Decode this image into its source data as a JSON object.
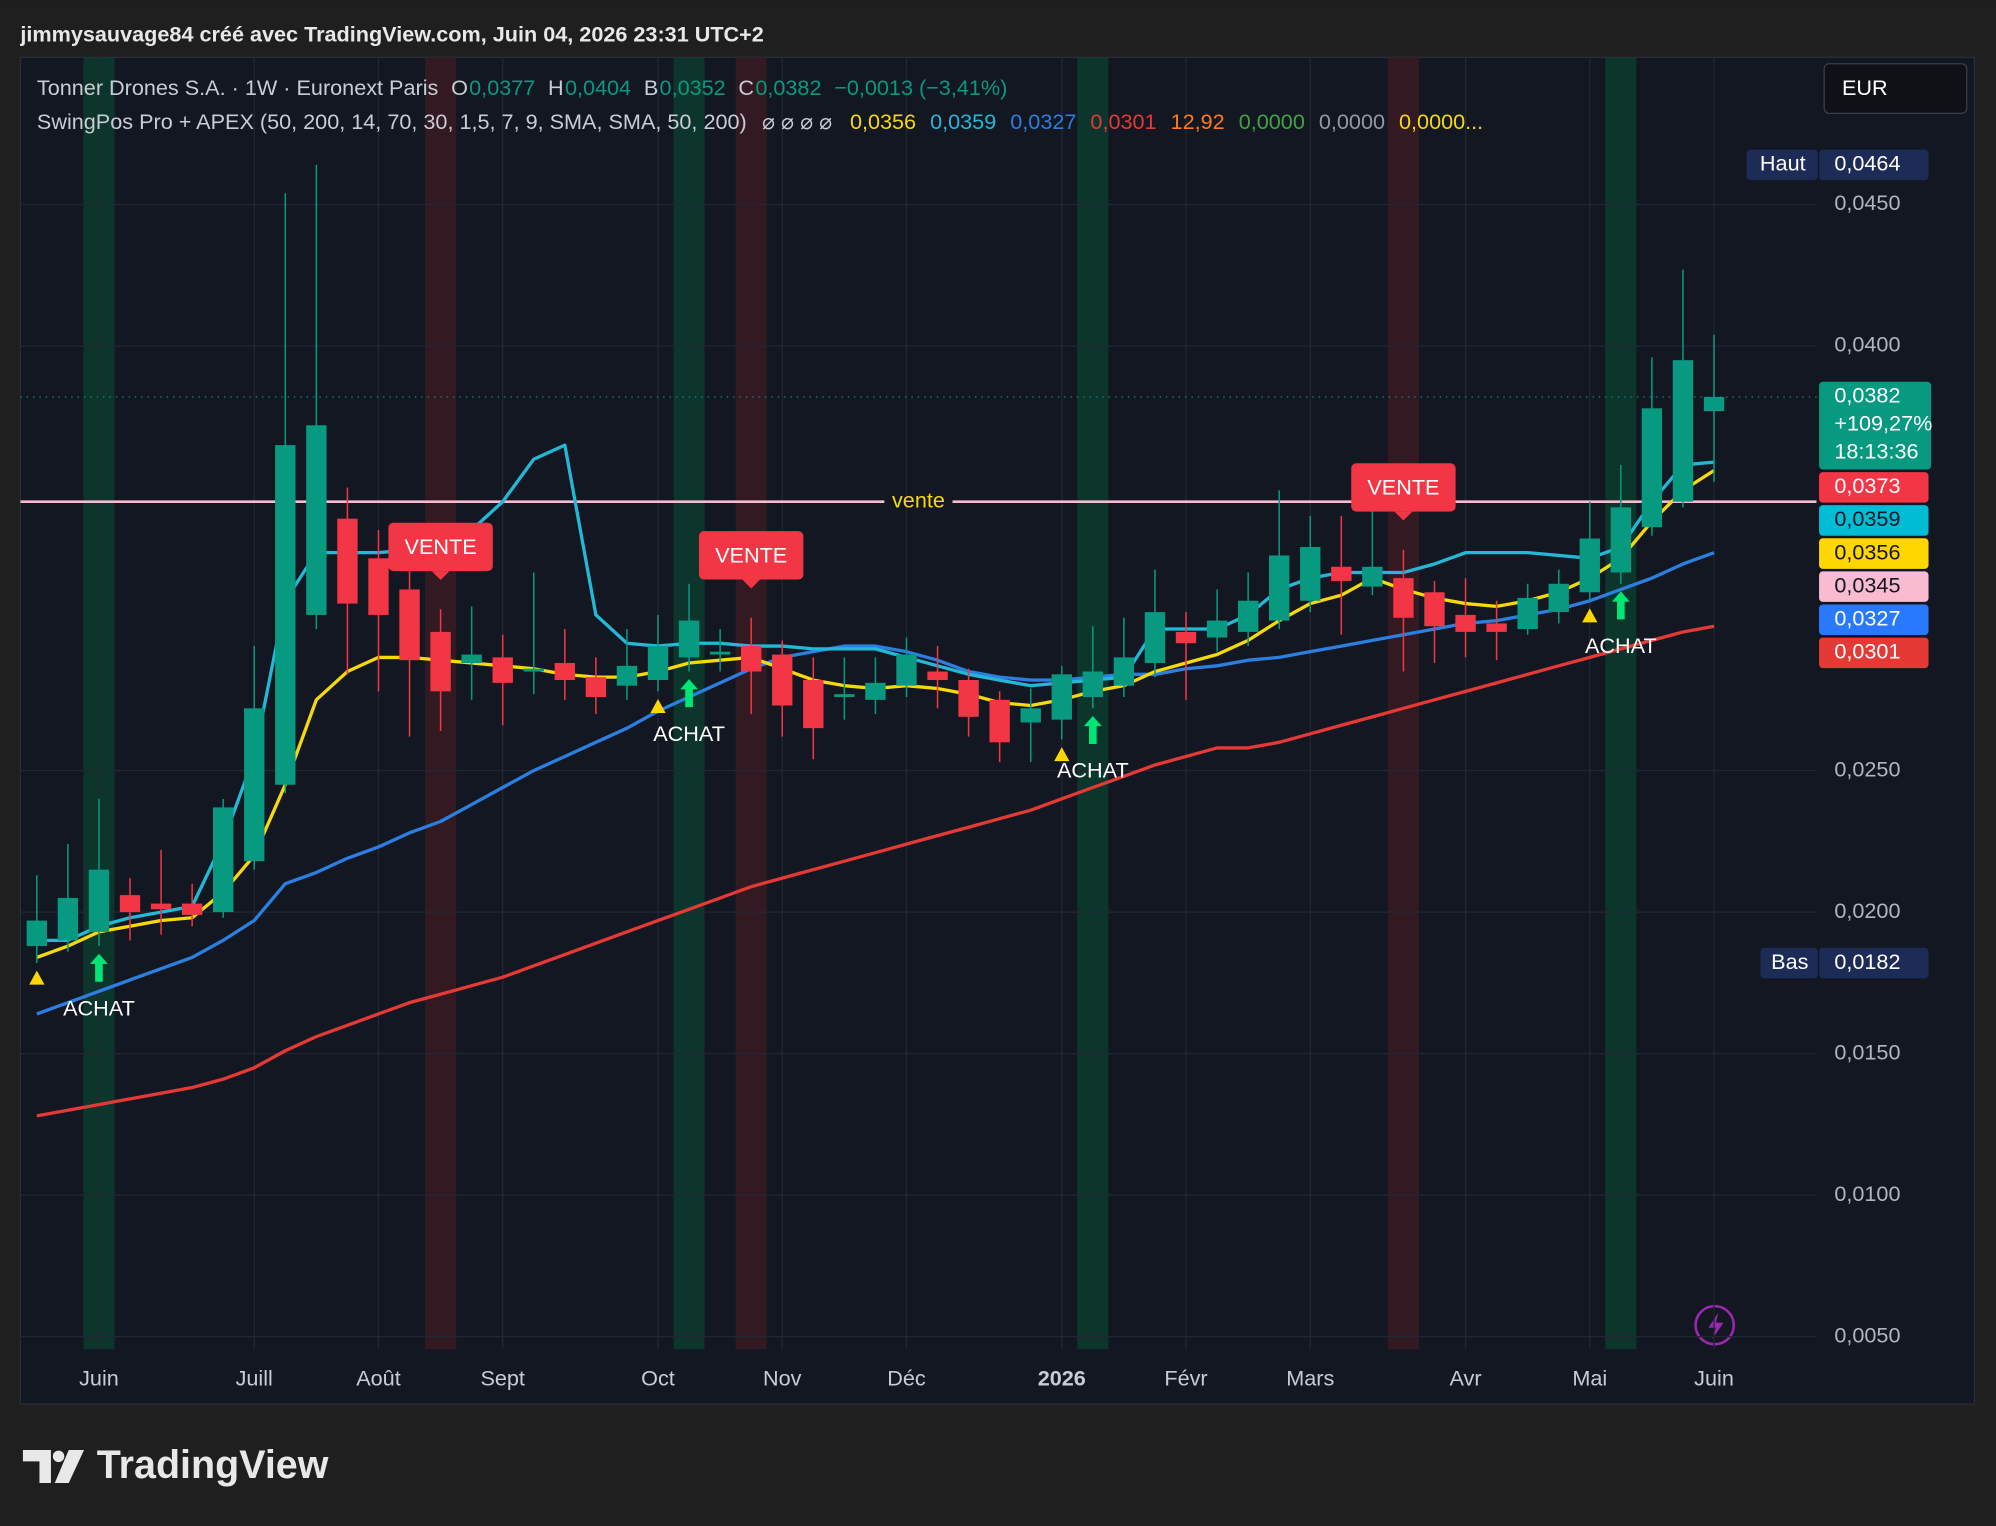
{
  "header": {
    "attribution": "jimmysauvage84 créé avec TradingView.com, Juin 04, 2026 23:31 UTC+2",
    "currency": "EUR",
    "brand": "TradingView"
  },
  "chart_data": {
    "type": "candlestick",
    "title": "Tonner Drones S.A. · 1W · Euronext Paris",
    "ohlc_readout": [
      {
        "label": "O",
        "value": "0,0377"
      },
      {
        "label": "H",
        "value": "0,0404"
      },
      {
        "label": "B",
        "value": "0,0352"
      },
      {
        "label": "C",
        "value": "0,0382"
      }
    ],
    "change": "−0,0013 (−3,41%)",
    "indicator": {
      "title": "SwingPos Pro + APEX (50, 200, 14, 70, 30, 1,5, 7, 9, SMA, SMA, 50, 200)",
      "flags": "⌀ ⌀ ⌀ ⌀",
      "readouts": [
        {
          "text": "0,0356",
          "color": "#f5d90a"
        },
        {
          "text": "0,0359",
          "color": "#22b8d6"
        },
        {
          "text": "0,0327",
          "color": "#2a7fe0"
        },
        {
          "text": "0,0301",
          "color": "#e53935"
        },
        {
          "text": "12,92",
          "color": "#ff7a1a"
        },
        {
          "text": "0,0000",
          "color": "#43a047"
        },
        {
          "text": "0,0000",
          "color": "#9598a1"
        },
        {
          "text": "0,0000...",
          "color": "#f5d90a"
        }
      ]
    },
    "xlim": [
      -0.53,
      57.3
    ],
    "xticks": [
      {
        "value": 2,
        "label": "Juin"
      },
      {
        "value": 7,
        "label": "Juill"
      },
      {
        "value": 11,
        "label": "Août"
      },
      {
        "value": 15,
        "label": "Sept"
      },
      {
        "value": 20,
        "label": "Oct"
      },
      {
        "value": 24,
        "label": "Nov"
      },
      {
        "value": 28,
        "label": "Déc"
      },
      {
        "value": 33,
        "label": "2026"
      },
      {
        "value": 37,
        "label": "Févr"
      },
      {
        "value": 41,
        "label": "Mars"
      },
      {
        "value": 46,
        "label": "Avr"
      },
      {
        "value": 50,
        "label": "Mai"
      },
      {
        "value": 54,
        "label": "Juin"
      }
    ],
    "ylim": [
      0.00455,
      0.0502
    ],
    "yticks": [
      {
        "value": 0.005,
        "label": "0,0050"
      },
      {
        "value": 0.01,
        "label": "0,0100"
      },
      {
        "value": 0.015,
        "label": "0,0150"
      },
      {
        "value": 0.02,
        "label": "0,0200"
      },
      {
        "value": 0.025,
        "label": "0,0250"
      },
      {
        "value": 0.04,
        "label": "0,0400"
      },
      {
        "value": 0.045,
        "label": "0,0450"
      }
    ],
    "grid": true,
    "candles": {
      "up_color": "#089981",
      "down_color": "#f23645",
      "open": [
        0.0188,
        0.019,
        0.0193,
        0.0206,
        0.0203,
        0.0203,
        0.02,
        0.0218,
        0.0245,
        0.0305,
        0.0339,
        0.0325,
        0.0314,
        0.0299,
        0.0288,
        0.029,
        0.0285,
        0.0288,
        0.0283,
        0.028,
        0.0282,
        0.029,
        0.0291,
        0.0294,
        0.0291,
        0.0282,
        0.0276,
        0.0275,
        0.028,
        0.0285,
        0.0282,
        0.0275,
        0.0267,
        0.0268,
        0.0276,
        0.028,
        0.0288,
        0.0299,
        0.0297,
        0.0299,
        0.0303,
        0.031,
        0.0322,
        0.0315,
        0.0318,
        0.0313,
        0.0305,
        0.0302,
        0.03,
        0.0306,
        0.0313,
        0.032,
        0.0336,
        0.0345,
        0.0377
      ],
      "high": [
        0.0213,
        0.0224,
        0.024,
        0.0212,
        0.0222,
        0.021,
        0.024,
        0.0294,
        0.0454,
        0.0464,
        0.035,
        0.0335,
        0.0322,
        0.0307,
        0.0308,
        0.0298,
        0.032,
        0.03,
        0.029,
        0.03,
        0.0305,
        0.0316,
        0.03,
        0.0304,
        0.0296,
        0.029,
        0.029,
        0.029,
        0.0297,
        0.0294,
        0.0286,
        0.0278,
        0.0279,
        0.0287,
        0.0301,
        0.0304,
        0.0321,
        0.0306,
        0.0314,
        0.032,
        0.0349,
        0.034,
        0.034,
        0.0345,
        0.0328,
        0.0317,
        0.0318,
        0.031,
        0.0316,
        0.0321,
        0.0345,
        0.0358,
        0.0396,
        0.0427,
        0.0404
      ],
      "low": [
        0.0182,
        0.0186,
        0.0188,
        0.019,
        0.0192,
        0.0195,
        0.0198,
        0.0215,
        0.0242,
        0.03,
        0.0284,
        0.0278,
        0.0262,
        0.0264,
        0.0275,
        0.0266,
        0.0277,
        0.0275,
        0.027,
        0.0275,
        0.0278,
        0.0285,
        0.0285,
        0.027,
        0.0262,
        0.0254,
        0.0268,
        0.027,
        0.0276,
        0.0272,
        0.0262,
        0.0253,
        0.0253,
        0.0261,
        0.0272,
        0.0276,
        0.0283,
        0.0275,
        0.0292,
        0.0294,
        0.03,
        0.0306,
        0.0298,
        0.0312,
        0.0285,
        0.0288,
        0.029,
        0.0289,
        0.0298,
        0.0302,
        0.031,
        0.0316,
        0.0333,
        0.0343,
        0.0352
      ],
      "close": [
        0.0197,
        0.0205,
        0.0215,
        0.02,
        0.0201,
        0.0199,
        0.0237,
        0.0272,
        0.0365,
        0.0372,
        0.0309,
        0.0305,
        0.0289,
        0.0278,
        0.0291,
        0.0281,
        0.0286,
        0.0282,
        0.0276,
        0.0287,
        0.0294,
        0.0303,
        0.0292,
        0.0285,
        0.0273,
        0.0265,
        0.0277,
        0.0281,
        0.0291,
        0.0282,
        0.0269,
        0.026,
        0.0272,
        0.0284,
        0.0285,
        0.029,
        0.0306,
        0.0295,
        0.0303,
        0.031,
        0.0326,
        0.0329,
        0.0317,
        0.0322,
        0.0304,
        0.0301,
        0.0299,
        0.0299,
        0.0311,
        0.0316,
        0.0332,
        0.0343,
        0.0378,
        0.0395,
        0.0382
      ]
    },
    "series": [
      {
        "color": "#e53935",
        "values": [
          0.0128,
          0.013,
          0.0132,
          0.0134,
          0.0136,
          0.0138,
          0.0141,
          0.0145,
          0.0151,
          0.0156,
          0.016,
          0.0164,
          0.0168,
          0.0171,
          0.0174,
          0.0177,
          0.0181,
          0.0185,
          0.0189,
          0.0193,
          0.0197,
          0.0201,
          0.0205,
          0.0209,
          0.0212,
          0.0215,
          0.0218,
          0.0221,
          0.0224,
          0.0227,
          0.023,
          0.0233,
          0.0236,
          0.024,
          0.0244,
          0.0248,
          0.0252,
          0.0255,
          0.0258,
          0.0258,
          0.026,
          0.0263,
          0.0266,
          0.0269,
          0.0272,
          0.0275,
          0.0278,
          0.0281,
          0.0284,
          0.0287,
          0.029,
          0.0293,
          0.0296,
          0.0299,
          0.0301
        ]
      },
      {
        "color": "#2a7fe0",
        "values": [
          0.0164,
          0.0168,
          0.0172,
          0.0176,
          0.018,
          0.0184,
          0.019,
          0.0197,
          0.021,
          0.0214,
          0.0219,
          0.0223,
          0.0228,
          0.0232,
          0.0238,
          0.0244,
          0.025,
          0.0255,
          0.026,
          0.0265,
          0.0271,
          0.0276,
          0.0281,
          0.0286,
          0.029,
          0.0292,
          0.0294,
          0.0294,
          0.0292,
          0.0289,
          0.0285,
          0.0283,
          0.0282,
          0.0282,
          0.0283,
          0.0284,
          0.0284,
          0.0286,
          0.0287,
          0.0289,
          0.029,
          0.0292,
          0.0294,
          0.0296,
          0.0298,
          0.03,
          0.0302,
          0.0303,
          0.0305,
          0.0307,
          0.031,
          0.0314,
          0.0318,
          0.0323,
          0.0327
        ]
      },
      {
        "color": "#22b8d6",
        "values": [
          0.019,
          0.019,
          0.0195,
          0.0198,
          0.02,
          0.0202,
          0.0225,
          0.0255,
          0.031,
          0.0327,
          0.0327,
          0.0327,
          0.0328,
          0.033,
          0.0335,
          0.0345,
          0.036,
          0.0365,
          0.0305,
          0.0295,
          0.0294,
          0.0295,
          0.0295,
          0.0294,
          0.0294,
          0.0293,
          0.0293,
          0.0293,
          0.029,
          0.0287,
          0.0284,
          0.0282,
          0.028,
          0.0281,
          0.0282,
          0.0283,
          0.03,
          0.03,
          0.03,
          0.0305,
          0.0314,
          0.0318,
          0.032,
          0.032,
          0.032,
          0.0323,
          0.0327,
          0.0327,
          0.0327,
          0.0326,
          0.0325,
          0.0329,
          0.0345,
          0.0358,
          0.0359
        ]
      },
      {
        "color": "#f5d90a",
        "values": [
          0.0184,
          0.0188,
          0.0193,
          0.0195,
          0.0197,
          0.0198,
          0.0207,
          0.022,
          0.0245,
          0.0275,
          0.0285,
          0.029,
          0.029,
          0.0289,
          0.0288,
          0.0287,
          0.0286,
          0.0284,
          0.0283,
          0.0283,
          0.0285,
          0.0288,
          0.0289,
          0.029,
          0.0286,
          0.0282,
          0.028,
          0.0279,
          0.028,
          0.0279,
          0.0277,
          0.0274,
          0.0273,
          0.0275,
          0.0278,
          0.028,
          0.0285,
          0.0288,
          0.0291,
          0.0296,
          0.0303,
          0.0309,
          0.0312,
          0.0318,
          0.0314,
          0.0311,
          0.0309,
          0.0308,
          0.031,
          0.0313,
          0.0318,
          0.0325,
          0.0338,
          0.0349,
          0.0356
        ]
      }
    ],
    "level_line": {
      "label": "vente",
      "value": 0.0345,
      "color": "#f8bbd0",
      "label_color": "#f5d90a"
    },
    "signals": {
      "buy": {
        "label": "ACHAT",
        "at": [
          2,
          21,
          34,
          51
        ],
        "color": "#00e676",
        "band_color": "#0c3b2e"
      },
      "sell": {
        "label": "VENTE",
        "at": [
          13,
          23,
          44
        ],
        "color": "#f23645",
        "band_color": "#3a1a22"
      },
      "triggers": {
        "at": [
          0,
          20,
          33,
          50
        ],
        "color": "#ffd600"
      }
    },
    "last_price": {
      "value": 0.0382,
      "label": "0,0382",
      "change": "+109,27%",
      "countdown": "18:13:36",
      "color": "#089981"
    },
    "price_badges": [
      {
        "value": 0.0373,
        "label": "0,0373",
        "color": "#f23645",
        "text_color": "#ffffff"
      },
      {
        "value": 0.0359,
        "label": "0,0359",
        "color": "#00bcd4",
        "text_color": "#131722"
      },
      {
        "value": 0.0356,
        "label": "0,0356",
        "color": "#ffd600",
        "text_color": "#131722"
      },
      {
        "value": 0.0345,
        "label": "0,0345",
        "color": "#f8bbd0",
        "text_color": "#131722"
      },
      {
        "value": 0.0327,
        "label": "0,0327",
        "color": "#2979ff",
        "text_color": "#ffffff"
      },
      {
        "value": 0.0301,
        "label": "0,0301",
        "color": "#e53935",
        "text_color": "#ffffff"
      }
    ],
    "high_marker": {
      "label": "Haut",
      "value": 0.0464,
      "value_label": "0,0464"
    },
    "low_marker": {
      "label": "Bas",
      "value": 0.0182,
      "value_label": "0,0182"
    }
  }
}
